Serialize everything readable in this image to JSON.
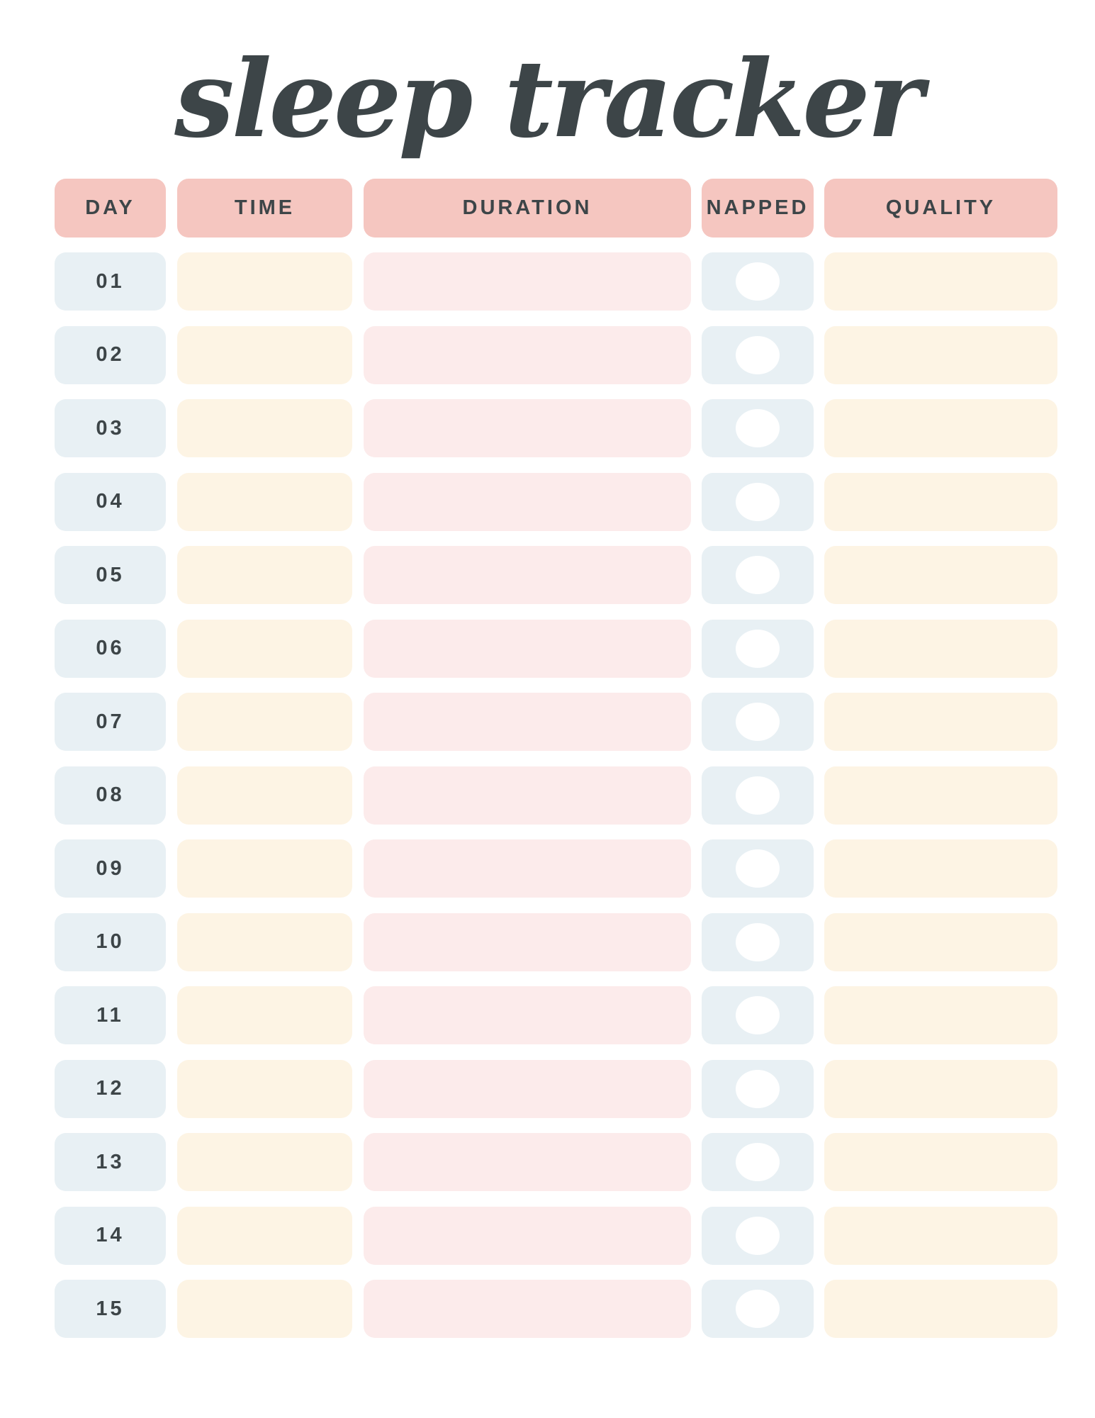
{
  "title": "sleep tracker",
  "headers": {
    "day": "DAY",
    "time": "TIME",
    "duration": "DURATION",
    "napped": "NAPPED",
    "quality": "QUALITY"
  },
  "days": [
    "01",
    "02",
    "03",
    "04",
    "05",
    "06",
    "07",
    "08",
    "09",
    "10",
    "11",
    "12",
    "13",
    "14",
    "15"
  ],
  "colors": {
    "header": "#f5c6c0",
    "day": "#e8f0f4",
    "time": "#fdf4e4",
    "duration": "#fcebeb",
    "napped": "#e8f0f4",
    "quality": "#fdf4e4",
    "text": "#3d4548"
  }
}
